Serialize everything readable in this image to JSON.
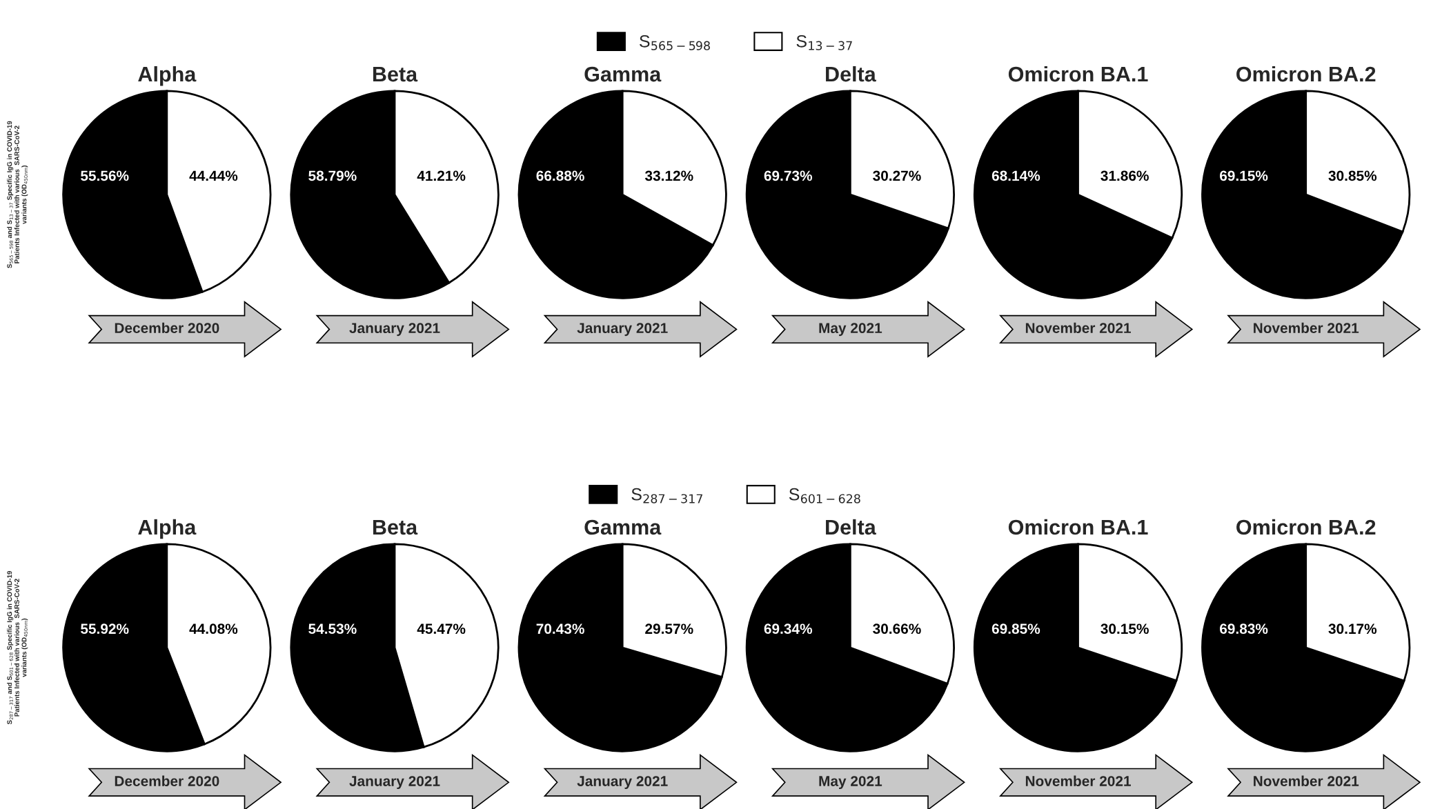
{
  "chart_data": [
    {
      "type": "pie",
      "title": "Alpha",
      "categories": [
        "S$_{565−598}$",
        "S$_{13−37}$"
      ],
      "values": [
        55.56,
        44.44
      ],
      "colors": [
        "#000000",
        "#ffffff"
      ],
      "value_labels": [
        "55.56%",
        "44.44%"
      ],
      "legend": "top",
      "ylabel": "S$_{565−598}$ and S$_{13−37}$ Specific IgG in COVID-19\nPatients Infected with various  SARS-CoV-2\nvariants (OD$_{450nm}$)",
      "annotations": [
        "December 2020"
      ]
    },
    {
      "type": "pie",
      "title": "Beta",
      "categories": [
        null,
        null
      ],
      "values": [
        58.79,
        41.21
      ],
      "colors": [
        "#000000",
        "#ffffff"
      ],
      "value_labels": [
        "58.79%",
        "41.21%"
      ],
      "annotations": [
        "January 2021"
      ]
    },
    {
      "type": "pie",
      "title": "Gamma",
      "categories": [
        null,
        null
      ],
      "values": [
        66.88,
        33.12
      ],
      "colors": [
        "#000000",
        "#ffffff"
      ],
      "value_labels": [
        "66.88%",
        "33.12%"
      ],
      "annotations": [
        "January 2021"
      ]
    },
    {
      "type": "pie",
      "title": "Delta",
      "categories": [
        null,
        null
      ],
      "values": [
        69.73,
        30.27
      ],
      "colors": [
        "#000000",
        "#ffffff"
      ],
      "value_labels": [
        "69.73%",
        "30.27%"
      ],
      "annotations": [
        "May 2021"
      ]
    },
    {
      "type": "pie",
      "title": "Omicron BA.1",
      "categories": [
        null,
        null
      ],
      "values": [
        68.14,
        31.86
      ],
      "colors": [
        "#000000",
        "#ffffff"
      ],
      "value_labels": [
        "68.14%",
        "31.86%"
      ],
      "annotations": [
        "November 2021"
      ]
    },
    {
      "type": "pie",
      "title": "Omicron BA.2",
      "categories": [
        null,
        null
      ],
      "values": [
        69.15,
        30.85
      ],
      "colors": [
        "#000000",
        "#ffffff"
      ],
      "value_labels": [
        "69.15%",
        "30.85%"
      ],
      "annotations": [
        "November 2021"
      ]
    },
    {
      "type": "pie",
      "title": "Alpha",
      "categories": [
        "S$_{287−317}$",
        "S$_{601−628}$"
      ],
      "values": [
        55.92,
        44.08
      ],
      "colors": [
        "#000000",
        "#ffffff"
      ],
      "value_labels": [
        "55.92%",
        "44.08%"
      ],
      "legend": "top",
      "ylabel": "S$_{287−317}$ and S$_{601−628}$ Specific IgG in COVID-19\nPatients Infected with various  SARS-CoV-2\nvariants (OD$_{450nm}$)",
      "annotations": [
        "December 2020"
      ]
    },
    {
      "type": "pie",
      "title": "Beta",
      "categories": [
        null,
        null
      ],
      "values": [
        54.53,
        45.47
      ],
      "colors": [
        "#000000",
        "#ffffff"
      ],
      "value_labels": [
        "54.53%",
        "45.47%"
      ],
      "annotations": [
        "January 2021"
      ]
    },
    {
      "type": "pie",
      "title": "Gamma",
      "categories": [
        null,
        null
      ],
      "values": [
        70.43,
        29.57
      ],
      "colors": [
        "#000000",
        "#ffffff"
      ],
      "value_labels": [
        "70.43%",
        "29.57%"
      ],
      "annotations": [
        "January 2021"
      ]
    },
    {
      "type": "pie",
      "title": "Delta",
      "categories": [
        null,
        null
      ],
      "values": [
        69.34,
        30.66
      ],
      "colors": [
        "#000000",
        "#ffffff"
      ],
      "value_labels": [
        "69.34%",
        "30.66%"
      ],
      "annotations": [
        "May 2021"
      ]
    },
    {
      "type": "pie",
      "title": "Omicron BA.1",
      "categories": [
        null,
        null
      ],
      "values": [
        69.85,
        30.15
      ],
      "colors": [
        "#000000",
        "#ffffff"
      ],
      "value_labels": [
        "69.85%",
        "30.15%"
      ],
      "annotations": [
        "November 2021"
      ]
    },
    {
      "type": "pie",
      "title": "Omicron BA.2",
      "categories": [
        null,
        null
      ],
      "values": [
        69.83,
        30.17
      ],
      "colors": [
        "#000000",
        "#ffffff"
      ],
      "value_labels": [
        "69.83%",
        "30.17%"
      ],
      "annotations": [
        "November 2021"
      ]
    }
  ]
}
